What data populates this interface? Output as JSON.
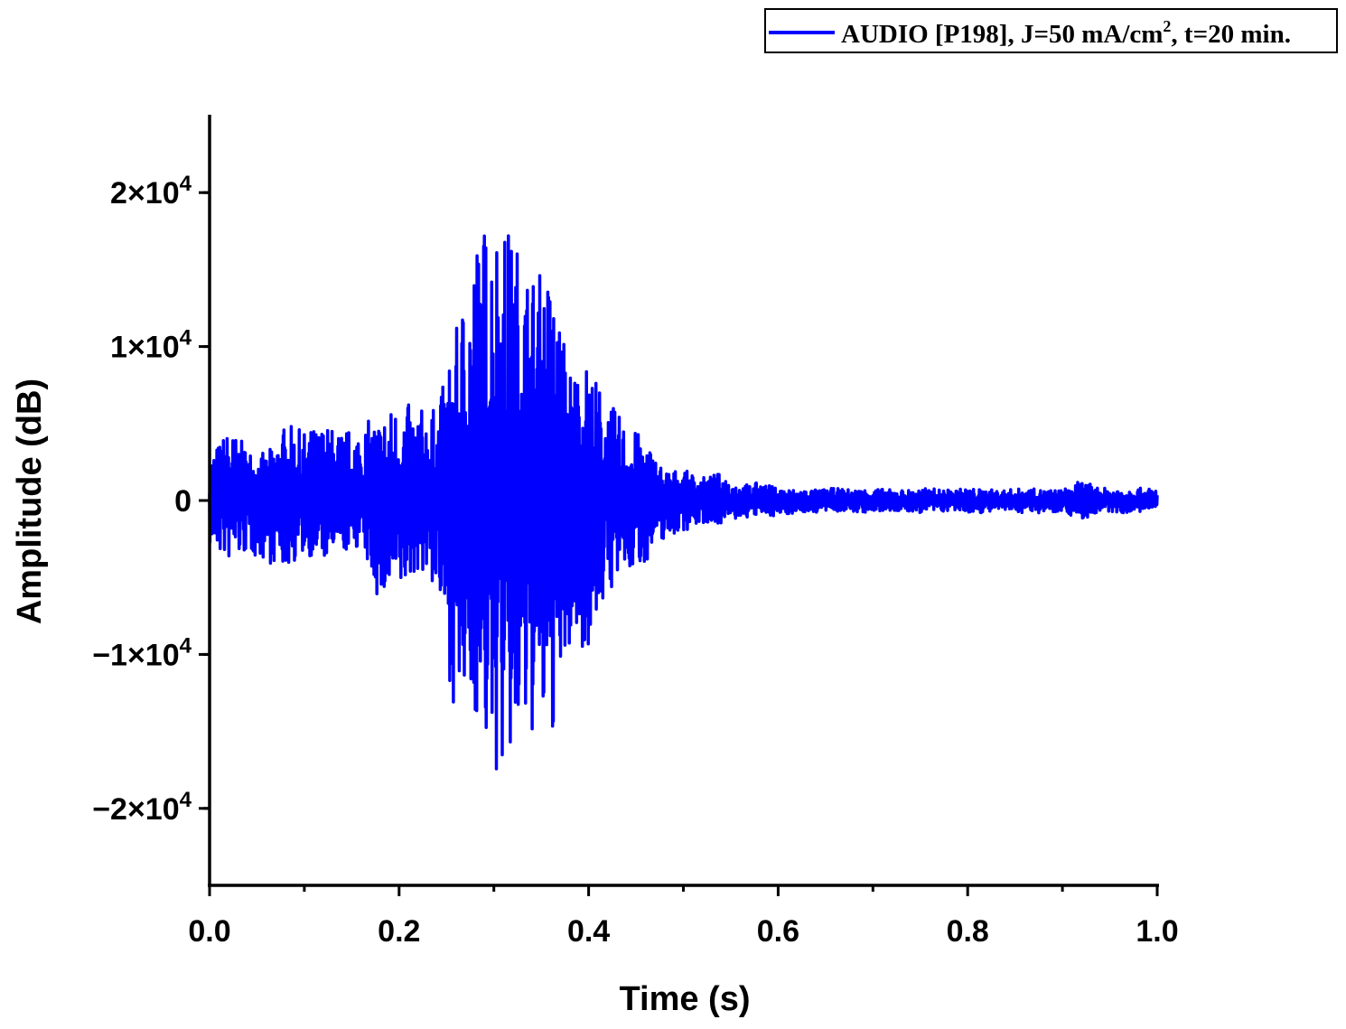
{
  "chart_data": {
    "type": "line",
    "title": "",
    "xlabel": "Time (s)",
    "ylabel": "Amplitude (dB)",
    "xlim": [
      0,
      1.0
    ],
    "ylim": [
      -25000,
      25000
    ],
    "x_ticks": [
      0.0,
      0.2,
      0.4,
      0.6,
      0.8,
      1.0
    ],
    "x_tick_labels": [
      "0.0",
      "0.2",
      "0.4",
      "0.6",
      "0.8",
      "1.0"
    ],
    "y_ticks": [
      -20000,
      -10000,
      0,
      10000,
      20000
    ],
    "y_tick_labels": [
      {
        "base": "−2×10",
        "exp": "4"
      },
      {
        "base": "−1×10",
        "exp": "4"
      },
      {
        "base": "0",
        "exp": ""
      },
      {
        "base": "1×10",
        "exp": "4"
      },
      {
        "base": "2×10",
        "exp": "4"
      }
    ],
    "grid": false,
    "legend_placement": "top-right",
    "series": [
      {
        "name": "AUDIO [P198], J=50 mA/cm2, t=20 min.",
        "color": "#0000ff",
        "envelope_time": [
          0.0,
          0.02,
          0.04,
          0.06,
          0.08,
          0.1,
          0.12,
          0.14,
          0.16,
          0.18,
          0.2,
          0.22,
          0.24,
          0.26,
          0.28,
          0.3,
          0.32,
          0.34,
          0.36,
          0.38,
          0.4,
          0.42,
          0.44,
          0.46,
          0.48,
          0.5,
          0.52,
          0.54,
          0.56,
          0.58,
          0.6,
          0.62,
          0.64,
          0.66,
          0.68,
          0.7,
          0.72,
          0.74,
          0.76,
          0.78,
          0.8,
          0.82,
          0.84,
          0.86,
          0.88,
          0.9,
          0.92,
          0.94,
          0.96,
          0.98,
          1.0
        ],
        "envelope_max": [
          3000,
          4700,
          3500,
          3000,
          5000,
          4500,
          5000,
          4500,
          5000,
          5500,
          6500,
          6000,
          6000,
          11000,
          17500,
          19200,
          17500,
          15000,
          15000,
          9000,
          9000,
          6500,
          5000,
          4000,
          2000,
          2000,
          1500,
          1800,
          1000,
          1200,
          800,
          700,
          700,
          800,
          700,
          800,
          700,
          700,
          800,
          700,
          800,
          700,
          700,
          800,
          700,
          700,
          1300,
          800,
          800,
          800,
          800
        ],
        "envelope_min": [
          -3000,
          -4000,
          -3500,
          -4000,
          -4500,
          -3500,
          -4000,
          -3500,
          -3000,
          -7000,
          -6500,
          -4500,
          -6000,
          -14500,
          -14000,
          -18300,
          -17500,
          -15500,
          -16000,
          -10000,
          -9500,
          -6000,
          -5000,
          -4000,
          -2500,
          -2000,
          -1500,
          -1500,
          -1200,
          -1000,
          -1000,
          -800,
          -800,
          -700,
          -800,
          -800,
          -700,
          -800,
          -800,
          -700,
          -800,
          -800,
          -700,
          -800,
          -800,
          -700,
          -1300,
          -800,
          -800,
          -800,
          -600
        ]
      }
    ],
    "legend": {
      "text": "AUDIO [P198], J=50 mA/cm",
      "sup": "2",
      "text_after": ", t=20 min."
    }
  }
}
